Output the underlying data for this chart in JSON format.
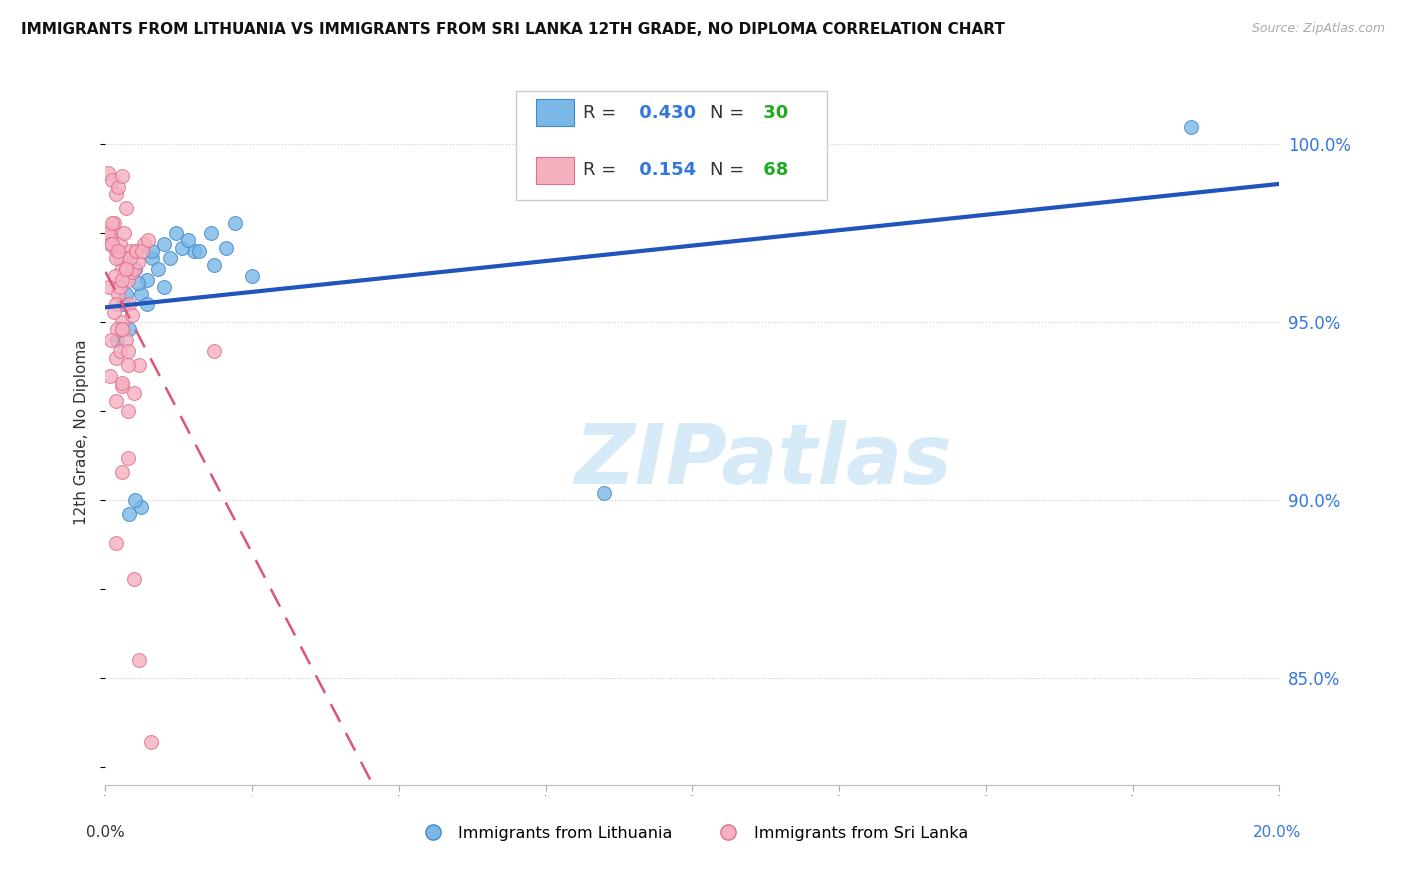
{
  "title": "IMMIGRANTS FROM LITHUANIA VS IMMIGRANTS FROM SRI LANKA 12TH GRADE, NO DIPLOMA CORRELATION CHART",
  "source": "Source: ZipAtlas.com",
  "ylabel": "12th Grade, No Diploma",
  "legend_label_blue": "Immigrants from Lithuania",
  "legend_label_pink": "Immigrants from Sri Lanka",
  "xmin": 0.0,
  "xmax": 20.0,
  "ymin": 82.0,
  "ymax": 101.8,
  "yticks": [
    85.0,
    90.0,
    95.0,
    100.0
  ],
  "R_blue": 0.43,
  "N_blue": 30,
  "R_pink": 0.154,
  "N_pink": 68,
  "blue_scatter_color": "#7ab8e8",
  "blue_edge_color": "#4488cc",
  "blue_line_color": "#2255bb",
  "pink_scatter_color": "#f5b0c0",
  "pink_edge_color": "#e07090",
  "pink_line_color": "#dd5577",
  "watermark_color": "#d6eaf8",
  "blue_x": [
    0.3,
    1.8,
    0.5,
    0.8,
    1.0,
    0.7,
    1.2,
    0.4,
    0.6,
    0.9,
    1.1,
    1.5,
    0.35,
    0.55,
    0.8,
    1.3,
    2.5,
    1.0,
    1.4,
    0.6,
    0.4,
    1.85,
    1.6,
    0.7,
    2.2,
    2.05,
    0.5,
    8.5,
    18.5,
    0.2
  ],
  "blue_y": [
    95.5,
    97.5,
    96.5,
    96.8,
    97.2,
    96.2,
    97.5,
    94.8,
    95.8,
    96.5,
    96.8,
    97.0,
    95.8,
    96.1,
    97.0,
    97.1,
    96.3,
    96.0,
    97.3,
    89.8,
    89.6,
    96.6,
    97.0,
    95.5,
    97.8,
    97.1,
    90.0,
    90.2,
    100.5,
    94.5
  ],
  "pink_x": [
    0.05,
    0.12,
    0.18,
    0.22,
    0.28,
    0.08,
    0.35,
    0.15,
    0.08,
    0.25,
    0.32,
    0.42,
    0.28,
    0.16,
    0.52,
    0.38,
    0.06,
    0.22,
    0.45,
    0.18,
    0.38,
    0.25,
    0.48,
    0.55,
    0.15,
    0.28,
    0.4,
    0.2,
    0.09,
    0.28,
    0.45,
    0.35,
    0.18,
    0.25,
    0.58,
    0.08,
    0.38,
    0.28,
    0.48,
    0.18,
    0.38,
    0.28,
    0.05,
    0.12,
    0.08,
    0.18,
    0.25,
    0.32,
    0.18,
    0.12,
    0.22,
    0.35,
    0.28,
    0.42,
    0.35,
    0.52,
    0.65,
    0.62,
    0.72,
    0.28,
    1.85,
    0.38,
    0.28,
    0.18,
    0.48,
    0.58,
    0.78,
    0.38
  ],
  "pink_y": [
    99.2,
    99.0,
    98.6,
    98.8,
    99.1,
    97.5,
    98.2,
    97.8,
    97.4,
    97.2,
    96.8,
    97.0,
    96.5,
    96.3,
    97.0,
    96.2,
    96.0,
    95.8,
    96.4,
    95.5,
    96.8,
    96.0,
    96.5,
    96.7,
    95.3,
    95.0,
    95.5,
    94.8,
    94.5,
    94.8,
    95.2,
    94.5,
    94.0,
    94.2,
    93.8,
    93.5,
    94.2,
    93.2,
    93.0,
    92.8,
    92.5,
    93.3,
    97.5,
    97.8,
    97.2,
    97.0,
    96.8,
    97.5,
    96.8,
    97.2,
    97.0,
    96.5,
    96.2,
    96.8,
    96.5,
    97.0,
    97.2,
    97.0,
    97.3,
    94.8,
    94.2,
    91.2,
    90.8,
    88.8,
    87.8,
    85.5,
    83.2,
    93.8
  ]
}
